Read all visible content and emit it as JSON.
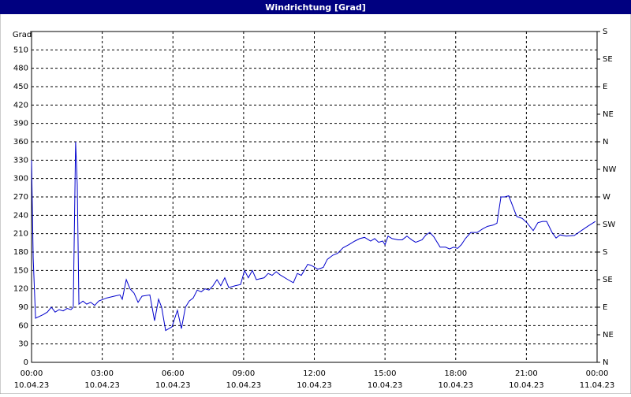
{
  "chart_data": {
    "type": "line",
    "title": "Windrichtung [Grad]",
    "y_label": "Grad",
    "x": [
      0,
      0.07,
      0.17,
      0.5,
      0.67,
      0.84,
      1.0,
      1.17,
      1.34,
      1.51,
      1.67,
      1.77,
      1.87,
      1.94,
      2.01,
      2.18,
      2.34,
      2.51,
      2.68,
      2.85,
      3.18,
      3.51,
      3.75,
      3.85,
      4.02,
      4.18,
      4.35,
      4.52,
      4.69,
      5.02,
      5.22,
      5.39,
      5.52,
      5.69,
      5.96,
      6.19,
      6.36,
      6.53,
      6.69,
      6.86,
      7.03,
      7.2,
      7.36,
      7.53,
      7.7,
      7.87,
      8.03,
      8.2,
      8.37,
      8.64,
      8.87,
      9.04,
      9.2,
      9.37,
      9.54,
      9.87,
      10.04,
      10.21,
      10.38,
      10.54,
      10.88,
      11.11,
      11.28,
      11.45,
      11.72,
      11.88,
      12.15,
      12.38,
      12.55,
      12.79,
      12.99,
      13.22,
      13.46,
      13.72,
      13.93,
      14.13,
      14.39,
      14.56,
      14.73,
      14.9,
      15.0,
      15.13,
      15.3,
      15.56,
      15.73,
      15.93,
      16.13,
      16.3,
      16.57,
      16.74,
      16.9,
      17.07,
      17.34,
      17.57,
      17.74,
      17.91,
      18.08,
      18.24,
      18.41,
      18.64,
      18.91,
      19.15,
      19.35,
      19.58,
      19.75,
      19.92,
      20.08,
      20.25,
      20.42,
      20.59,
      20.82,
      21.02,
      21.29,
      21.49,
      21.69,
      21.86,
      22.09,
      22.26,
      22.43,
      22.69,
      23.03,
      23.33,
      23.6,
      23.93
    ],
    "series": [
      {
        "name": "Windrichtung",
        "color": "#0000cc",
        "values": [
          330,
          170,
          72,
          78,
          82,
          90,
          82,
          86,
          84,
          88,
          86,
          90,
          360,
          290,
          95,
          100,
          95,
          98,
          93,
          100,
          105,
          108,
          110,
          103,
          135,
          120,
          113,
          98,
          108,
          110,
          68,
          103,
          90,
          52,
          58,
          85,
          55,
          90,
          100,
          105,
          118,
          115,
          120,
          118,
          125,
          135,
          125,
          138,
          122,
          125,
          127,
          150,
          138,
          150,
          135,
          138,
          145,
          142,
          148,
          143,
          135,
          130,
          145,
          142,
          160,
          158,
          152,
          155,
          168,
          175,
          178,
          187,
          192,
          198,
          202,
          204,
          198,
          202,
          196,
          198,
          192,
          206,
          202,
          200,
          200,
          206,
          200,
          196,
          200,
          208,
          212,
          205,
          188,
          188,
          185,
          188,
          186,
          192,
          202,
          212,
          212,
          218,
          222,
          224,
          227,
          270,
          270,
          272,
          255,
          238,
          235,
          228,
          215,
          228,
          230,
          230,
          212,
          203,
          208,
          206,
          207,
          215,
          222,
          230
        ]
      }
    ],
    "xlim": [
      0,
      24
    ],
    "xticks": [
      {
        "value": 0,
        "label": "00:00",
        "date": "10.04.23"
      },
      {
        "value": 3,
        "label": "03:00",
        "date": "10.04.23"
      },
      {
        "value": 6,
        "label": "06:00",
        "date": "10.04.23"
      },
      {
        "value": 9,
        "label": "09:00",
        "date": "10.04.23"
      },
      {
        "value": 12,
        "label": "12:00",
        "date": "10.04.23"
      },
      {
        "value": 15,
        "label": "15:00",
        "date": "10.04.23"
      },
      {
        "value": 18,
        "label": "18:00",
        "date": "10.04.23"
      },
      {
        "value": 21,
        "label": "21:00",
        "date": "10.04.23"
      },
      {
        "value": 24,
        "label": "00:00",
        "date": "11.04.23"
      }
    ],
    "ylim": [
      0,
      540
    ],
    "yticks": [
      0,
      30,
      60,
      90,
      120,
      150,
      180,
      210,
      240,
      270,
      300,
      330,
      360,
      390,
      420,
      450,
      480,
      510
    ],
    "y2lim": [
      0,
      540
    ],
    "y2ticks": [
      {
        "value": 0,
        "label": "N"
      },
      {
        "value": 45,
        "label": "NE"
      },
      {
        "value": 90,
        "label": "E"
      },
      {
        "value": 135,
        "label": "SE"
      },
      {
        "value": 180,
        "label": "S"
      },
      {
        "value": 225,
        "label": "SW"
      },
      {
        "value": 270,
        "label": "W"
      },
      {
        "value": 315,
        "label": "NW"
      },
      {
        "value": 360,
        "label": "N"
      },
      {
        "value": 405,
        "label": "NE"
      },
      {
        "value": 450,
        "label": "E"
      },
      {
        "value": 495,
        "label": "SE"
      },
      {
        "value": 540,
        "label": "S"
      }
    ],
    "grid": true
  }
}
